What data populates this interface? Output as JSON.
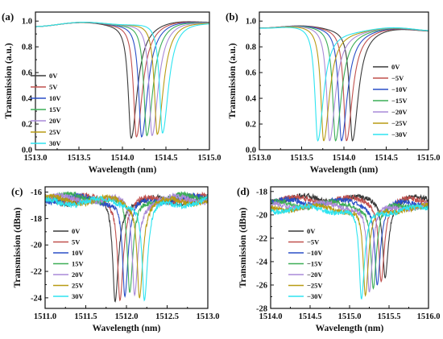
{
  "colors": [
    "#3a3a3a",
    "#c0504d",
    "#2a4fc7",
    "#3cae57",
    "#a98ad8",
    "#b89b13",
    "#2ee4f0"
  ],
  "chart_data": [
    {
      "panel_label": "(a)",
      "type": "line",
      "xlabel": "Wavelength (nm)",
      "ylabel": "Transmission (a.u.)",
      "xlim": [
        1513.0,
        1515.0
      ],
      "ylim": [
        0.0,
        1.07
      ],
      "xticks": [
        1513.0,
        1513.5,
        1514.0,
        1514.5,
        1515.0
      ],
      "xtick_labels": [
        "1513.0",
        "1513.5",
        "1514.0",
        "1514.5",
        "1515.0"
      ],
      "yticks": [
        0.0,
        0.2,
        0.4,
        0.6,
        0.8,
        1.0
      ],
      "ytick_labels": [
        "0.0",
        "0.2",
        "0.4",
        "0.6",
        "0.8",
        "1.0"
      ],
      "legend_position": "left",
      "series": [
        {
          "name": "0V",
          "dip_center": 1514.1,
          "dip_min": 0.09,
          "baseline": 0.97,
          "fwhm": 0.09
        },
        {
          "name": "5V",
          "dip_center": 1514.16,
          "dip_min": 0.1,
          "baseline": 0.97,
          "fwhm": 0.09
        },
        {
          "name": "10V",
          "dip_center": 1514.22,
          "dip_min": 0.1,
          "baseline": 0.97,
          "fwhm": 0.09
        },
        {
          "name": "15V",
          "dip_center": 1514.28,
          "dip_min": 0.11,
          "baseline": 0.97,
          "fwhm": 0.09
        },
        {
          "name": "20V",
          "dip_center": 1514.34,
          "dip_min": 0.11,
          "baseline": 0.97,
          "fwhm": 0.09
        },
        {
          "name": "25V",
          "dip_center": 1514.4,
          "dip_min": 0.12,
          "baseline": 0.97,
          "fwhm": 0.09
        },
        {
          "name": "30V",
          "dip_center": 1514.46,
          "dip_min": 0.13,
          "baseline": 0.97,
          "fwhm": 0.09
        }
      ]
    },
    {
      "panel_label": "(b)",
      "type": "line",
      "xlabel": "Wavelength (nm)",
      "ylabel": "Transmission (a.u.)",
      "xlim": [
        1513.0,
        1515.0
      ],
      "ylim": [
        0.0,
        1.07
      ],
      "xticks": [
        1513.0,
        1513.5,
        1514.0,
        1514.5,
        1515.0
      ],
      "xtick_labels": [
        "1513.0",
        "1513.5",
        "1514.0",
        "1514.5",
        "1515.0"
      ],
      "yticks": [
        0.0,
        0.2,
        0.4,
        0.6,
        0.8,
        1.0
      ],
      "ytick_labels": [
        "0.0",
        "0.2",
        "0.4",
        "0.6",
        "0.8",
        "1.0"
      ],
      "legend_position": "right",
      "series": [
        {
          "name": "0V",
          "dip_center": 1514.1,
          "dip_min": 0.07,
          "baseline": 0.96,
          "fwhm": 0.09
        },
        {
          "name": "−5V",
          "dip_center": 1514.03,
          "dip_min": 0.07,
          "baseline": 0.96,
          "fwhm": 0.09
        },
        {
          "name": "−10V",
          "dip_center": 1513.97,
          "dip_min": 0.07,
          "baseline": 0.96,
          "fwhm": 0.09
        },
        {
          "name": "−15V",
          "dip_center": 1513.9,
          "dip_min": 0.07,
          "baseline": 0.96,
          "fwhm": 0.09
        },
        {
          "name": "−20V",
          "dip_center": 1513.83,
          "dip_min": 0.07,
          "baseline": 0.96,
          "fwhm": 0.09
        },
        {
          "name": "−25V",
          "dip_center": 1513.76,
          "dip_min": 0.07,
          "baseline": 0.96,
          "fwhm": 0.09
        },
        {
          "name": "−30V",
          "dip_center": 1513.69,
          "dip_min": 0.07,
          "baseline": 0.96,
          "fwhm": 0.09
        }
      ]
    },
    {
      "panel_label": "(c)",
      "type": "line",
      "xlabel": "Wavelength (nm)",
      "ylabel": "Transmission (dBm)",
      "xlim": [
        1511.0,
        1513.0
      ],
      "ylim": [
        -24.8,
        -15.6
      ],
      "xticks": [
        1511.0,
        1511.5,
        1512.0,
        1512.5,
        1513.0
      ],
      "xtick_labels": [
        "1511.0",
        "1511.5",
        "1512.0",
        "1512.5",
        "1513.0"
      ],
      "yticks": [
        -24,
        -22,
        -20,
        -18,
        -16
      ],
      "ytick_labels": [
        "-24",
        "-22",
        "-20",
        "-18",
        "-16"
      ],
      "legend_position": "center",
      "series": [
        {
          "name": "0V",
          "dip_center": 1511.86,
          "dip_min": -24.3,
          "baseline": -16.6,
          "fwhm": 0.07
        },
        {
          "name": "5V",
          "dip_center": 1511.92,
          "dip_min": -24.2,
          "baseline": -16.5,
          "fwhm": 0.07
        },
        {
          "name": "10V",
          "dip_center": 1511.98,
          "dip_min": -23.9,
          "baseline": -16.5,
          "fwhm": 0.07
        },
        {
          "name": "15V",
          "dip_center": 1512.04,
          "dip_min": -23.6,
          "baseline": -16.4,
          "fwhm": 0.07
        },
        {
          "name": "20V",
          "dip_center": 1512.1,
          "dip_min": -23.8,
          "baseline": -16.5,
          "fwhm": 0.07
        },
        {
          "name": "25V",
          "dip_center": 1512.16,
          "dip_min": -24.0,
          "baseline": -16.6,
          "fwhm": 0.07
        },
        {
          "name": "30V",
          "dip_center": 1512.22,
          "dip_min": -24.2,
          "baseline": -16.7,
          "fwhm": 0.07
        }
      ]
    },
    {
      "panel_label": "(d)",
      "type": "line",
      "xlabel": "Wavelength (nm)",
      "ylabel": "Transmission (dBm)",
      "xlim": [
        1514.0,
        1516.0
      ],
      "ylim": [
        -28.0,
        -17.6
      ],
      "xticks": [
        1514.0,
        1514.5,
        1515.0,
        1515.5,
        1516.0
      ],
      "xtick_labels": [
        "1514.0",
        "1514.5",
        "1515.0",
        "1515.5",
        "1516.0"
      ],
      "yticks": [
        -28,
        -26,
        -24,
        -22,
        -20,
        -18
      ],
      "ytick_labels": [
        "-28",
        "-26",
        "-24",
        "-22",
        "-20",
        "-18"
      ],
      "legend_position": "center",
      "series": [
        {
          "name": "0V",
          "dip_center": 1515.45,
          "dip_min": -25.4,
          "baseline": -18.6,
          "fwhm": 0.07
        },
        {
          "name": "−5V",
          "dip_center": 1515.4,
          "dip_min": -25.7,
          "baseline": -18.7,
          "fwhm": 0.07
        },
        {
          "name": "−10V",
          "dip_center": 1515.35,
          "dip_min": -26.0,
          "baseline": -18.9,
          "fwhm": 0.07
        },
        {
          "name": "−15V",
          "dip_center": 1515.3,
          "dip_min": -26.3,
          "baseline": -19.1,
          "fwhm": 0.07
        },
        {
          "name": "−20V",
          "dip_center": 1515.25,
          "dip_min": -26.6,
          "baseline": -19.2,
          "fwhm": 0.07
        },
        {
          "name": "−25V",
          "dip_center": 1515.2,
          "dip_min": -26.9,
          "baseline": -19.4,
          "fwhm": 0.07
        },
        {
          "name": "−30V",
          "dip_center": 1515.15,
          "dip_min": -27.2,
          "baseline": -19.5,
          "fwhm": 0.07
        }
      ]
    }
  ]
}
